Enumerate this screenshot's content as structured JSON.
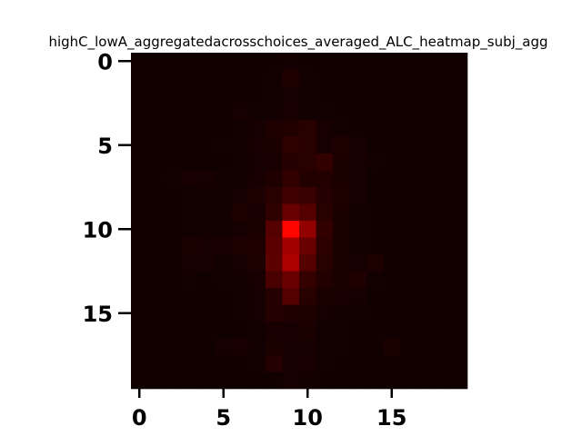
{
  "chart_data": {
    "type": "heatmap",
    "title": "highC_lowA_aggregatedacrosschoices_averaged_ALC_heatmap_subj_agg",
    "xlabel": "",
    "ylabel": "",
    "xlim": [
      -0.5,
      19.5
    ],
    "ylim": [
      19.5,
      -0.5
    ],
    "x_ticks": [
      0,
      5,
      10,
      15
    ],
    "y_ticks": [
      0,
      5,
      10,
      15
    ],
    "x_tick_labels": [
      "0",
      "5",
      "10",
      "15"
    ],
    "y_tick_labels": [
      "0",
      "5",
      "10",
      "15"
    ],
    "colormap": "black-to-red",
    "vmin": 0,
    "vmax": 1,
    "rows": 20,
    "cols": 20,
    "values": [
      [
        0.02,
        0.02,
        0.02,
        0.02,
        0.02,
        0.02,
        0.02,
        0.02,
        0.02,
        0.03,
        0.02,
        0.02,
        0.02,
        0.02,
        0.02,
        0.02,
        0.02,
        0.02,
        0.02,
        0.02
      ],
      [
        0.02,
        0.02,
        0.02,
        0.02,
        0.02,
        0.02,
        0.02,
        0.02,
        0.03,
        0.08,
        0.03,
        0.02,
        0.02,
        0.02,
        0.02,
        0.02,
        0.02,
        0.02,
        0.02,
        0.02
      ],
      [
        0.02,
        0.02,
        0.02,
        0.02,
        0.02,
        0.02,
        0.02,
        0.02,
        0.03,
        0.04,
        0.03,
        0.02,
        0.02,
        0.02,
        0.02,
        0.02,
        0.02,
        0.02,
        0.02,
        0.02
      ],
      [
        0.02,
        0.02,
        0.02,
        0.02,
        0.02,
        0.02,
        0.04,
        0.03,
        0.03,
        0.05,
        0.03,
        0.03,
        0.02,
        0.02,
        0.02,
        0.02,
        0.02,
        0.02,
        0.02,
        0.02
      ],
      [
        0.02,
        0.02,
        0.02,
        0.02,
        0.02,
        0.02,
        0.03,
        0.04,
        0.08,
        0.09,
        0.12,
        0.05,
        0.03,
        0.02,
        0.02,
        0.02,
        0.02,
        0.02,
        0.02,
        0.02
      ],
      [
        0.02,
        0.02,
        0.02,
        0.02,
        0.02,
        0.03,
        0.03,
        0.05,
        0.06,
        0.14,
        0.12,
        0.04,
        0.07,
        0.04,
        0.02,
        0.02,
        0.02,
        0.02,
        0.02,
        0.02
      ],
      [
        0.02,
        0.02,
        0.02,
        0.02,
        0.02,
        0.02,
        0.03,
        0.04,
        0.05,
        0.1,
        0.12,
        0.16,
        0.06,
        0.04,
        0.03,
        0.02,
        0.02,
        0.02,
        0.02,
        0.02
      ],
      [
        0.02,
        0.02,
        0.03,
        0.05,
        0.04,
        0.03,
        0.03,
        0.05,
        0.08,
        0.16,
        0.09,
        0.09,
        0.06,
        0.04,
        0.02,
        0.02,
        0.02,
        0.02,
        0.02,
        0.02
      ],
      [
        0.02,
        0.02,
        0.02,
        0.03,
        0.03,
        0.03,
        0.04,
        0.07,
        0.12,
        0.22,
        0.18,
        0.1,
        0.07,
        0.04,
        0.02,
        0.02,
        0.02,
        0.02,
        0.02,
        0.02
      ],
      [
        0.02,
        0.02,
        0.02,
        0.03,
        0.03,
        0.03,
        0.07,
        0.05,
        0.14,
        0.38,
        0.3,
        0.11,
        0.06,
        0.03,
        0.02,
        0.02,
        0.02,
        0.02,
        0.02,
        0.02
      ],
      [
        0.02,
        0.02,
        0.02,
        0.03,
        0.03,
        0.03,
        0.04,
        0.06,
        0.3,
        1.0,
        0.55,
        0.16,
        0.06,
        0.03,
        0.02,
        0.02,
        0.02,
        0.02,
        0.02,
        0.02
      ],
      [
        0.02,
        0.02,
        0.02,
        0.06,
        0.04,
        0.05,
        0.07,
        0.08,
        0.32,
        0.62,
        0.38,
        0.13,
        0.06,
        0.03,
        0.02,
        0.02,
        0.02,
        0.02,
        0.02,
        0.02
      ],
      [
        0.02,
        0.02,
        0.02,
        0.04,
        0.04,
        0.03,
        0.04,
        0.07,
        0.33,
        0.66,
        0.3,
        0.11,
        0.06,
        0.04,
        0.07,
        0.02,
        0.02,
        0.02,
        0.02,
        0.02
      ],
      [
        0.02,
        0.02,
        0.02,
        0.03,
        0.02,
        0.03,
        0.03,
        0.05,
        0.25,
        0.38,
        0.17,
        0.09,
        0.06,
        0.08,
        0.03,
        0.02,
        0.02,
        0.02,
        0.02,
        0.02
      ],
      [
        0.02,
        0.02,
        0.02,
        0.02,
        0.02,
        0.02,
        0.03,
        0.04,
        0.1,
        0.3,
        0.11,
        0.06,
        0.05,
        0.04,
        0.02,
        0.02,
        0.02,
        0.02,
        0.02,
        0.02
      ],
      [
        0.02,
        0.02,
        0.02,
        0.02,
        0.02,
        0.02,
        0.03,
        0.04,
        0.1,
        0.08,
        0.07,
        0.04,
        0.03,
        0.03,
        0.02,
        0.02,
        0.02,
        0.02,
        0.02,
        0.02
      ],
      [
        0.02,
        0.02,
        0.02,
        0.02,
        0.02,
        0.02,
        0.02,
        0.03,
        0.05,
        0.05,
        0.06,
        0.03,
        0.03,
        0.02,
        0.02,
        0.02,
        0.02,
        0.02,
        0.02,
        0.02
      ],
      [
        0.02,
        0.02,
        0.02,
        0.02,
        0.02,
        0.04,
        0.05,
        0.03,
        0.06,
        0.04,
        0.04,
        0.03,
        0.03,
        0.02,
        0.02,
        0.06,
        0.02,
        0.02,
        0.02,
        0.02
      ],
      [
        0.02,
        0.02,
        0.02,
        0.02,
        0.02,
        0.02,
        0.02,
        0.03,
        0.1,
        0.04,
        0.05,
        0.03,
        0.02,
        0.02,
        0.02,
        0.02,
        0.02,
        0.02,
        0.02,
        0.02
      ],
      [
        0.02,
        0.02,
        0.02,
        0.02,
        0.02,
        0.02,
        0.02,
        0.02,
        0.02,
        0.04,
        0.03,
        0.02,
        0.02,
        0.02,
        0.02,
        0.02,
        0.02,
        0.02,
        0.02,
        0.02
      ]
    ]
  }
}
